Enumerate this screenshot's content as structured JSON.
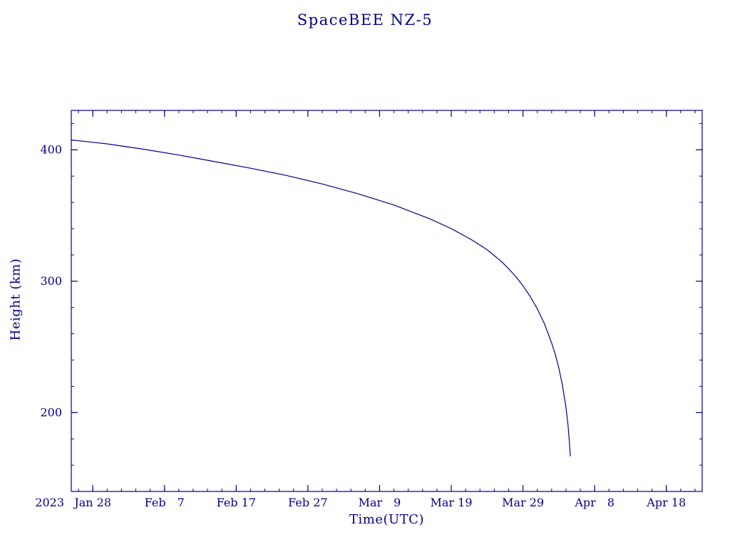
{
  "page": {
    "background": "#ffffff"
  },
  "chart_data": {
    "type": "line",
    "title": "SpaceBEE NZ-5",
    "xlabel": "Time(UTC)",
    "ylabel": "Height (km)",
    "line_color": "#00008b",
    "axis_color": "#00008b",
    "legend": "none",
    "grid": false,
    "x_axis": {
      "unit": "days relative to first labeled tick (2023 Jan 28 = 0)",
      "range": [
        -3,
        85
      ],
      "year_label": "2023",
      "major_ticks": [
        {
          "day": 0,
          "label": "Jan 28"
        },
        {
          "day": 10,
          "label": "Feb  7"
        },
        {
          "day": 20,
          "label": "Feb 17"
        },
        {
          "day": 30,
          "label": "Feb 27"
        },
        {
          "day": 40,
          "label": "Mar  9"
        },
        {
          "day": 50,
          "label": "Mar 19"
        },
        {
          "day": 60,
          "label": "Mar 29"
        },
        {
          "day": 70,
          "label": "Apr  8"
        },
        {
          "day": 80,
          "label": "Apr 18"
        }
      ],
      "minor_tick_interval_days": 2
    },
    "y_axis": {
      "range": [
        140,
        430
      ],
      "major_ticks": [
        200,
        300,
        400
      ],
      "minor_tick_interval_km": 20
    },
    "series": [
      {
        "name": "SpaceBEE NZ-5 orbital height",
        "points": [
          [
            -3,
            407.5
          ],
          [
            2,
            404.5
          ],
          [
            7,
            400.5
          ],
          [
            12,
            396
          ],
          [
            17,
            391
          ],
          [
            22,
            386
          ],
          [
            27,
            380.5
          ],
          [
            32,
            374
          ],
          [
            37,
            366.5
          ],
          [
            42,
            358
          ],
          [
            47,
            347.5
          ],
          [
            50,
            340
          ],
          [
            53,
            331
          ],
          [
            55,
            324
          ],
          [
            57,
            315
          ],
          [
            58,
            309.5
          ],
          [
            59,
            303.5
          ],
          [
            60,
            296.5
          ],
          [
            61,
            288.5
          ],
          [
            62,
            279
          ],
          [
            63,
            267.5
          ],
          [
            64,
            253
          ],
          [
            64.5,
            244.5
          ],
          [
            65,
            234
          ],
          [
            65.5,
            221
          ],
          [
            66,
            204
          ],
          [
            66.3,
            190
          ],
          [
            66.5,
            176
          ],
          [
            66.6,
            167
          ]
        ]
      }
    ]
  }
}
